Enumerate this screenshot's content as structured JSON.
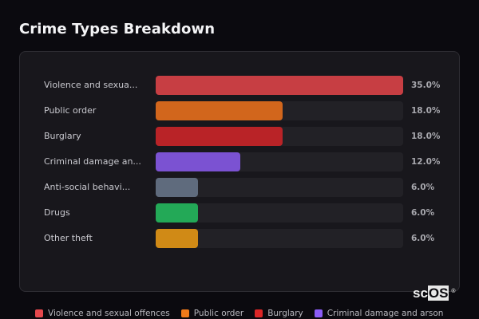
{
  "header": {
    "title": "Crime Types Breakdown"
  },
  "chart_data": {
    "type": "bar",
    "orientation": "horizontal",
    "title": "Crime Types Breakdown",
    "categories": [
      "Violence and sexual offences",
      "Public order",
      "Burglary",
      "Criminal damage and arson",
      "Anti-social behaviour",
      "Drugs",
      "Other theft"
    ],
    "display_labels": [
      "Violence and sexua...",
      "Public order",
      "Burglary",
      "Criminal damage an...",
      "Anti-social behavi...",
      "Drugs",
      "Other theft"
    ],
    "values": [
      35.0,
      18.0,
      18.0,
      12.0,
      6.0,
      6.0,
      6.0
    ],
    "value_labels": [
      "35.0%",
      "18.0%",
      "18.0%",
      "12.0%",
      "6.0%",
      "6.0%",
      "6.0%"
    ],
    "colors": [
      "#c73e43",
      "#d2661c",
      "#b92327",
      "#7b52d2",
      "#5f6b7d",
      "#23a957",
      "#d08a16"
    ],
    "unit": "%",
    "xlim": [
      0,
      35
    ],
    "grid": false,
    "legend_position": "bottom"
  },
  "legend": {
    "items": [
      {
        "label": "Violence and sexual offences",
        "color": "#e5484d"
      },
      {
        "label": "Public order",
        "color": "#f07a1a"
      },
      {
        "label": "Burglary",
        "color": "#dc2626"
      },
      {
        "label": "Criminal damage and arson",
        "color": "#8b5cf6"
      }
    ]
  },
  "branding": {
    "logo_prefix": "sc",
    "logo_box": "OS",
    "logo_mark": "®"
  }
}
